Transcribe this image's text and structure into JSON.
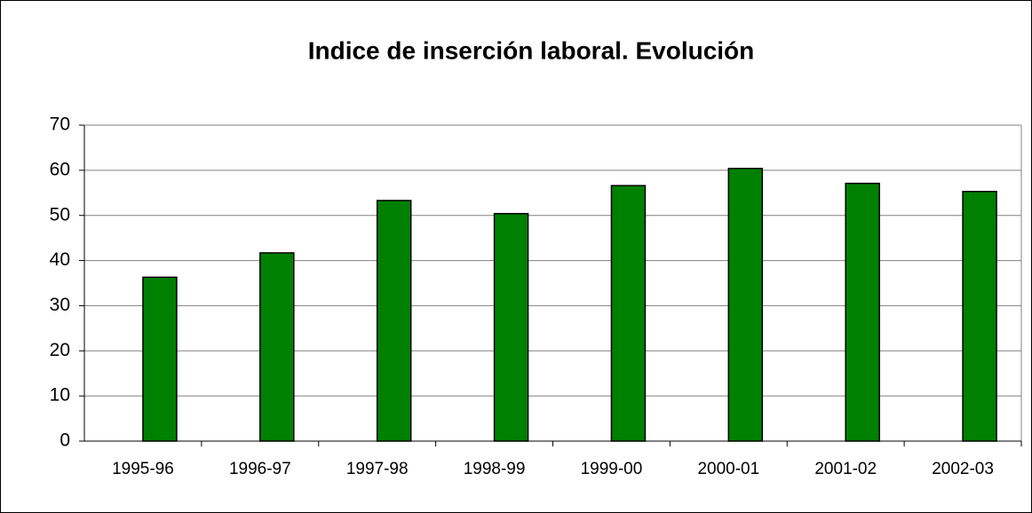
{
  "chart_data": {
    "type": "bar",
    "title": "Indice de inserción laboral. Evolución",
    "categories": [
      "1995-96",
      "1996-97",
      "1997-98",
      "1998-99",
      "1999-00",
      "2000-01",
      "2001-02",
      "2002-03"
    ],
    "values": [
      36.3,
      41.7,
      53.3,
      50.4,
      56.6,
      60.4,
      57.1,
      55.3
    ],
    "color": "#008000",
    "ylim": [
      0,
      70
    ],
    "yticks": [
      0,
      10,
      20,
      30,
      40,
      50,
      60,
      70
    ],
    "grid": true
  }
}
